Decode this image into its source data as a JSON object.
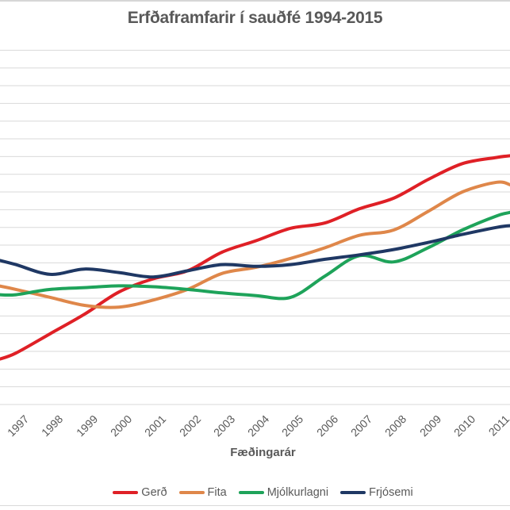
{
  "title": "Erfðaframfarir í sauðfé 1994-2015",
  "x_axis": {
    "title": "Fæðingarár",
    "tick_labels": [
      "1997",
      "1998",
      "1999",
      "2000",
      "2001",
      "2002",
      "2003",
      "2004",
      "2005",
      "2006",
      "2007",
      "2008",
      "2009",
      "2010",
      "2011"
    ]
  },
  "legend": {
    "items": [
      {
        "label": "Gerð",
        "color": "#df2026"
      },
      {
        "label": "Fita",
        "color": "#df874a"
      },
      {
        "label": "Mjólkurlagni",
        "color": "#1ea35a"
      },
      {
        "label": "Frjósemi",
        "color": "#1f3864"
      }
    ]
  },
  "colors": {
    "text": "#595959",
    "gridline": "#d9d9d9",
    "border": "#d6d6d6",
    "background": "#ffffff"
  },
  "chart_data": {
    "type": "line",
    "title": "Erfðaframfarir í sauðfé 1994-2015",
    "xlabel": "Fæðingarár",
    "ylabel": "",
    "grid": {
      "horizontal_gridlines": 21,
      "vertical_gridlines": 0
    },
    "legend_position": "bottom",
    "x_visible_ticks": [
      1997,
      1998,
      1999,
      2000,
      2001,
      2002,
      2003,
      2004,
      2005,
      2006,
      2007,
      2008,
      2009,
      2010,
      2011
    ],
    "x": [
      1996.5,
      1997,
      1998,
      1999,
      2000,
      2001,
      2002,
      2003,
      2004,
      2005,
      2006,
      2007,
      2008,
      2009,
      2010,
      2011,
      2011.4
    ],
    "x_note": "Chart is cropped: title says 1994-2015 but only years 1997-2011 are visible; first and last data points are the clipped line ends at the image edges.",
    "y_axis": {
      "labels_visible": false,
      "units": "horizontal gridline intervals above the bottom visible gridline (y-axis value labels are cropped out of view)"
    },
    "series": [
      {
        "name": "Gerð",
        "color": "#df2026",
        "values": [
          2.55,
          2.9,
          4.0,
          5.1,
          6.35,
          7.1,
          7.55,
          8.6,
          9.25,
          9.95,
          10.25,
          11.05,
          11.65,
          12.7,
          13.6,
          13.95,
          14.05
        ]
      },
      {
        "name": "Fita",
        "color": "#df874a",
        "values": [
          6.7,
          6.5,
          6.05,
          5.6,
          5.5,
          5.9,
          6.5,
          7.4,
          7.75,
          8.25,
          8.85,
          9.55,
          9.85,
          10.9,
          12.0,
          12.55,
          12.4
        ]
      },
      {
        "name": "Mjólkurlagni",
        "color": "#1ea35a",
        "values": [
          6.2,
          6.2,
          6.5,
          6.6,
          6.7,
          6.65,
          6.5,
          6.3,
          6.15,
          6.05,
          7.25,
          8.4,
          8.05,
          8.85,
          9.85,
          10.65,
          10.85
        ]
      },
      {
        "name": "Frjósemi",
        "color": "#1f3864",
        "values": [
          8.15,
          7.9,
          7.35,
          7.65,
          7.45,
          7.2,
          7.55,
          7.9,
          7.8,
          7.9,
          8.2,
          8.45,
          8.75,
          9.15,
          9.6,
          10.0,
          10.1
        ]
      }
    ]
  }
}
